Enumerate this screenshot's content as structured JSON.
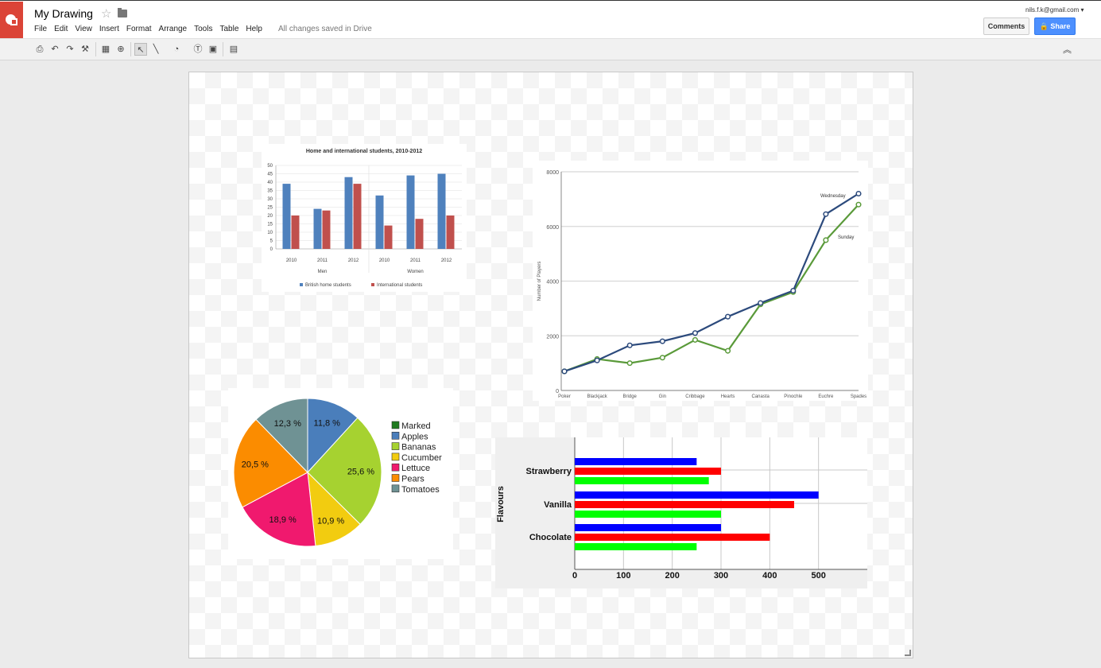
{
  "header": {
    "title": "My Drawing",
    "save_status": "All changes saved in Drive",
    "user_email": "nils.f.k@gmail.com",
    "comments_label": "Comments",
    "share_label": "Share"
  },
  "menu": [
    "File",
    "Edit",
    "View",
    "Insert",
    "Format",
    "Arrange",
    "Tools",
    "Table",
    "Help"
  ],
  "toolbar": {
    "icons": [
      "print-icon",
      "undo-icon",
      "redo-icon",
      "paint-format-icon",
      "select-all-icon",
      "zoom-icon",
      "select-icon",
      "line-icon",
      "shape-icon",
      "text-box-icon",
      "image-icon",
      "comment-icon"
    ]
  },
  "chart_data": [
    {
      "type": "bar",
      "title": "Home and international students, 2010-2012",
      "categories": [
        "2010",
        "2011",
        "2012",
        "2010",
        "2011",
        "2012"
      ],
      "groups": [
        "Men",
        "Women"
      ],
      "series": [
        {
          "name": "British home students",
          "values": [
            39,
            24,
            43,
            32,
            44,
            45
          ],
          "color": "#4f81bd"
        },
        {
          "name": "International students",
          "values": [
            20,
            23,
            39,
            14,
            18,
            20
          ],
          "color": "#c0504d"
        }
      ],
      "yticks": [
        "0",
        "5",
        "10",
        "15",
        "20",
        "25",
        "30",
        "35",
        "40",
        "45",
        "50"
      ],
      "ylim": [
        0,
        50
      ]
    },
    {
      "type": "line",
      "ylabel": "Number of Players",
      "categories": [
        "Poker",
        "Blackjack",
        "Bridge",
        "Gin",
        "Cribbage",
        "Hearts",
        "Canasta",
        "Pinochle",
        "Euchre",
        "Spades"
      ],
      "series": [
        {
          "name": "Wednesday",
          "values": [
            700,
            1100,
            1650,
            1800,
            2100,
            2700,
            3200,
            3650,
            6450,
            7200
          ],
          "color": "#2c4a7c"
        },
        {
          "name": "Sunday",
          "values": [
            700,
            1150,
            1000,
            1200,
            1850,
            1450,
            3150,
            3600,
            5500,
            6800
          ],
          "color": "#5a9a3a"
        }
      ],
      "yticks": [
        "0",
        "2000",
        "4000",
        "6000",
        "8000"
      ],
      "ylim": [
        0,
        8000
      ]
    },
    {
      "type": "pie",
      "slices": [
        {
          "name": "Marked",
          "value": 0,
          "label": "",
          "color": "#1e7a1e"
        },
        {
          "name": "Apples",
          "value": 11.8,
          "label": "11,8 %",
          "color": "#4a7ebb"
        },
        {
          "name": "Bananas",
          "value": 25.6,
          "label": "25,6 %",
          "color": "#a6d230"
        },
        {
          "name": "Cucumber",
          "value": 10.9,
          "label": "10,9 %",
          "color": "#f2cc10"
        },
        {
          "name": "Lettuce",
          "value": 18.9,
          "label": "18,9 %",
          "color": "#f0196e"
        },
        {
          "name": "Pears",
          "value": 20.5,
          "label": "20,5 %",
          "color": "#fb8c00"
        },
        {
          "name": "Tomatoes",
          "value": 12.3,
          "label": "12,3 %",
          "color": "#6f9294"
        }
      ]
    },
    {
      "type": "bar",
      "orientation": "horizontal",
      "ylabel": "Flavours",
      "categories": [
        "Strawberry",
        "Vanilla",
        "Chocolate"
      ],
      "series": [
        {
          "values": [
            250,
            500,
            300
          ],
          "color": "#0000ff"
        },
        {
          "values": [
            300,
            450,
            400
          ],
          "color": "#ff0000"
        },
        {
          "values": [
            275,
            300,
            250
          ],
          "color": "#00ff00"
        }
      ],
      "xticks": [
        "0",
        "100",
        "200",
        "300",
        "400",
        "500"
      ],
      "xlim": [
        0,
        600
      ]
    }
  ]
}
